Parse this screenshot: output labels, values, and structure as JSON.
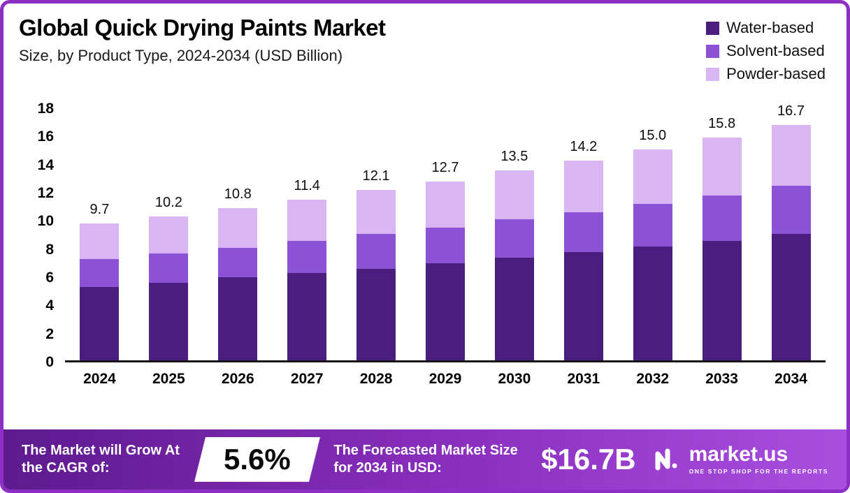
{
  "header": {
    "title": "Global Quick Drying Paints Market",
    "subtitle": "Size, by Product Type, 2024-2034 (USD Billion)"
  },
  "legend": [
    {
      "label": "Water-based",
      "color": "#4a1d7f"
    },
    {
      "label": "Solvent-based",
      "color": "#8c52d6"
    },
    {
      "label": "Powder-based",
      "color": "#d9b6f3"
    }
  ],
  "chart_data": {
    "type": "bar",
    "stacked": true,
    "title": "Global Quick Drying Paints Market Size, by Product Type, 2024-2034 (USD Billion)",
    "xlabel": "",
    "ylabel": "",
    "ylim": [
      0,
      18
    ],
    "yticks": [
      0,
      2,
      4,
      6,
      8,
      10,
      12,
      14,
      16,
      18
    ],
    "grid": false,
    "legend_position": "top-right",
    "categories": [
      "2024",
      "2025",
      "2026",
      "2027",
      "2028",
      "2029",
      "2030",
      "2031",
      "2032",
      "2033",
      "2034"
    ],
    "series": [
      {
        "name": "Water-based",
        "color": "#4a1d7f",
        "values": [
          5.2,
          5.5,
          5.9,
          6.2,
          6.5,
          6.9,
          7.3,
          7.7,
          8.1,
          8.5,
          9.0
        ]
      },
      {
        "name": "Solvent-based",
        "color": "#8c52d6",
        "values": [
          2.0,
          2.1,
          2.1,
          2.3,
          2.5,
          2.5,
          2.7,
          2.8,
          3.0,
          3.2,
          3.4
        ]
      },
      {
        "name": "Powder-based",
        "color": "#d9b6f3",
        "values": [
          2.5,
          2.6,
          2.8,
          2.9,
          3.1,
          3.3,
          3.5,
          3.7,
          3.9,
          4.1,
          4.3
        ]
      }
    ],
    "totals": [
      "9.7",
      "10.2",
      "10.8",
      "11.4",
      "12.1",
      "12.7",
      "13.5",
      "14.2",
      "15.0",
      "15.8",
      "16.7"
    ]
  },
  "footer": {
    "cagr_label": "The Market will Grow At the CAGR of:",
    "cagr_value": "5.6%",
    "forecast_label": "The Forecasted Market Size for 2034 in USD:",
    "forecast_value": "$16.7B",
    "brand": "market.us",
    "brand_tagline": "ONE STOP SHOP FOR THE REPORTS"
  }
}
